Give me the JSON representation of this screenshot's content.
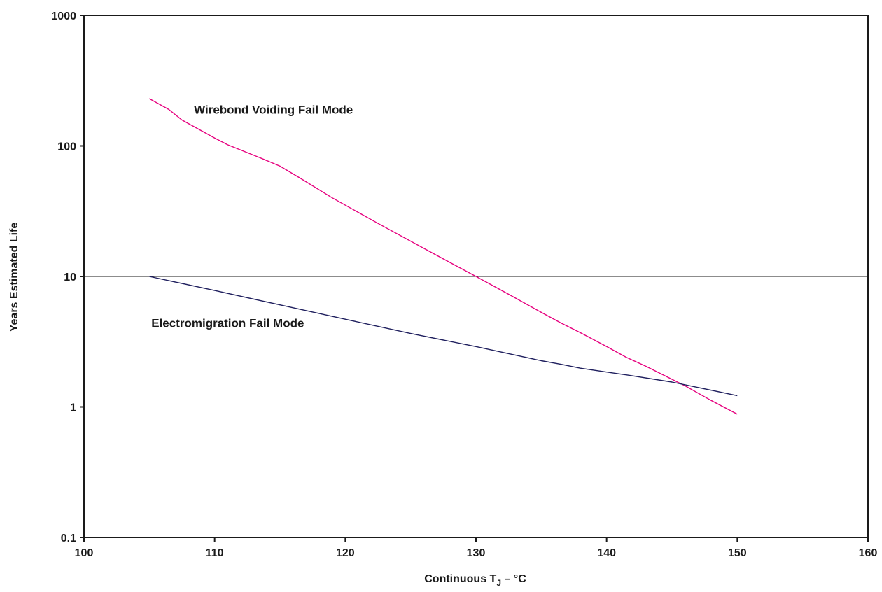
{
  "chart_data": {
    "type": "line",
    "title": "",
    "xlabel": {
      "prefix": "Continuous T",
      "subscript": "J",
      "suffix": " – °C"
    },
    "ylabel": "Years Estimated Life",
    "xlim": [
      100,
      160
    ],
    "ylim": [
      0.1,
      1000
    ],
    "yscale": "log",
    "grid": "horizontal major lines",
    "legend": "none",
    "x_ticks": [
      100,
      110,
      120,
      130,
      140,
      150,
      160
    ],
    "x_tick_labels": [
      "100",
      "110",
      "120",
      "130",
      "140",
      "150",
      "160"
    ],
    "y_ticks": [
      0.1,
      1,
      10,
      100,
      1000
    ],
    "y_tick_labels": [
      "0.1",
      "1",
      "10",
      "100",
      "1000"
    ],
    "series": [
      {
        "color": "#e6007e",
        "x": [
          105,
          106.5,
          107.5,
          110,
          111,
          113.5,
          115,
          116.5,
          119,
          122.5,
          127,
          130,
          132.5,
          135,
          136.5,
          138,
          140,
          141.5,
          143,
          146,
          148,
          150
        ],
        "y": [
          230,
          190,
          158,
          115,
          102,
          81,
          70,
          57,
          40,
          25.5,
          14.5,
          10,
          7.3,
          5.3,
          4.4,
          3.7,
          2.9,
          2.4,
          2.05,
          1.45,
          1.12,
          0.88
        ]
      },
      {
        "color": "#1f1f5e",
        "x": [
          105,
          110,
          115,
          120,
          125,
          130,
          135,
          136.5,
          138,
          140,
          141.5,
          145,
          150
        ],
        "y": [
          10,
          7.8,
          6.05,
          4.7,
          3.65,
          2.9,
          2.26,
          2.12,
          1.98,
          1.85,
          1.76,
          1.55,
          1.22
        ]
      }
    ],
    "annotations": [
      {
        "text": "Wirebond Voiding Fail Mode",
        "x": 114.5,
        "y": 190
      },
      {
        "text": "Electromigration Fail Mode",
        "x": 111,
        "y": 4.4
      }
    ]
  }
}
